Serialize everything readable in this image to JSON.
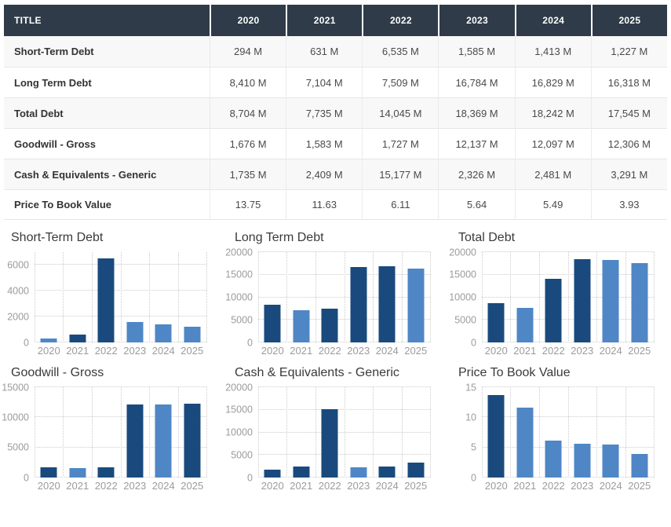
{
  "colors": {
    "header_bg": "#2f3b48",
    "header_text": "#ffffff",
    "bar_dark": "#1a4a7d",
    "bar_light": "#4f86c6",
    "grid_line": "#cbcbcb",
    "axis_text": "#9b9b9b",
    "row_alt_bg": "#f8f8f8"
  },
  "table": {
    "header": {
      "title_label": "TITLE",
      "years": [
        "2020",
        "2021",
        "2022",
        "2023",
        "2024",
        "2025"
      ]
    },
    "rows": [
      {
        "label": "Short-Term Debt",
        "values": [
          "294 M",
          "631 M",
          "6,535 M",
          "1,585 M",
          "1,413 M",
          "1,227 M"
        ]
      },
      {
        "label": "Long Term Debt",
        "values": [
          "8,410 M",
          "7,104 M",
          "7,509 M",
          "16,784 M",
          "16,829 M",
          "16,318 M"
        ]
      },
      {
        "label": "Total Debt",
        "values": [
          "8,704 M",
          "7,735 M",
          "14,045 M",
          "18,369 M",
          "18,242 M",
          "17,545 M"
        ]
      },
      {
        "label": "Goodwill - Gross",
        "values": [
          "1,676 M",
          "1,583 M",
          "1,727 M",
          "12,137 M",
          "12,097 M",
          "12,306 M"
        ]
      },
      {
        "label": "Cash & Equivalents - Generic",
        "values": [
          "1,735 M",
          "2,409 M",
          "15,177 M",
          "2,326 M",
          "2,481 M",
          "3,291 M"
        ]
      },
      {
        "label": "Price To Book Value",
        "values": [
          "13.75",
          "11.63",
          "6.11",
          "5.64",
          "5.49",
          "3.93"
        ]
      }
    ]
  },
  "chart_data": [
    {
      "type": "bar",
      "title": "Short-Term Debt",
      "categories": [
        "2020",
        "2021",
        "2022",
        "2023",
        "2024",
        "2025"
      ],
      "values": [
        294,
        631,
        6535,
        1585,
        1413,
        1227
      ],
      "bar_colors": [
        "light",
        "dark",
        "dark",
        "light",
        "light",
        "light"
      ],
      "yticks": [
        0,
        2000,
        4000,
        6000
      ],
      "ylim": [
        0,
        7000
      ],
      "xlabel": "",
      "ylabel": "",
      "grid": true,
      "legend": false
    },
    {
      "type": "bar",
      "title": "Long Term Debt",
      "categories": [
        "2020",
        "2021",
        "2022",
        "2023",
        "2024",
        "2025"
      ],
      "values": [
        8410,
        7104,
        7509,
        16784,
        16829,
        16318
      ],
      "bar_colors": [
        "dark",
        "light",
        "dark",
        "dark",
        "dark",
        "light"
      ],
      "yticks": [
        0,
        5000,
        10000,
        15000,
        20000
      ],
      "ylim": [
        0,
        20000
      ],
      "xlabel": "",
      "ylabel": "",
      "grid": true,
      "legend": false
    },
    {
      "type": "bar",
      "title": "Total Debt",
      "categories": [
        "2020",
        "2021",
        "2022",
        "2023",
        "2024",
        "2025"
      ],
      "values": [
        8704,
        7735,
        14045,
        18369,
        18242,
        17545
      ],
      "bar_colors": [
        "dark",
        "light",
        "dark",
        "dark",
        "light",
        "light"
      ],
      "yticks": [
        0,
        5000,
        10000,
        15000,
        20000
      ],
      "ylim": [
        0,
        20000
      ],
      "xlabel": "",
      "ylabel": "",
      "grid": true,
      "legend": false
    },
    {
      "type": "bar",
      "title": "Goodwill - Gross",
      "categories": [
        "2020",
        "2021",
        "2022",
        "2023",
        "2024",
        "2025"
      ],
      "values": [
        1676,
        1583,
        1727,
        12137,
        12097,
        12306
      ],
      "bar_colors": [
        "dark",
        "light",
        "dark",
        "dark",
        "light",
        "dark"
      ],
      "yticks": [
        0,
        5000,
        10000,
        15000
      ],
      "ylim": [
        0,
        15000
      ],
      "xlabel": "",
      "ylabel": "",
      "grid": true,
      "legend": false
    },
    {
      "type": "bar",
      "title": "Cash & Equivalents - Generic",
      "categories": [
        "2020",
        "2021",
        "2022",
        "2023",
        "2024",
        "2025"
      ],
      "values": [
        1735,
        2409,
        15177,
        2326,
        2481,
        3291
      ],
      "bar_colors": [
        "dark",
        "dark",
        "dark",
        "light",
        "dark",
        "dark"
      ],
      "yticks": [
        0,
        5000,
        10000,
        15000,
        20000
      ],
      "ylim": [
        0,
        20000
      ],
      "xlabel": "",
      "ylabel": "",
      "grid": true,
      "legend": false
    },
    {
      "type": "bar",
      "title": "Price To Book Value",
      "categories": [
        "2020",
        "2021",
        "2022",
        "2023",
        "2024",
        "2025"
      ],
      "values": [
        13.75,
        11.63,
        6.11,
        5.64,
        5.49,
        3.93
      ],
      "bar_colors": [
        "dark",
        "light",
        "light",
        "light",
        "light",
        "light"
      ],
      "yticks": [
        0,
        5,
        10,
        15
      ],
      "ylim": [
        0,
        15
      ],
      "xlabel": "",
      "ylabel": "",
      "grid": true,
      "legend": false
    }
  ]
}
